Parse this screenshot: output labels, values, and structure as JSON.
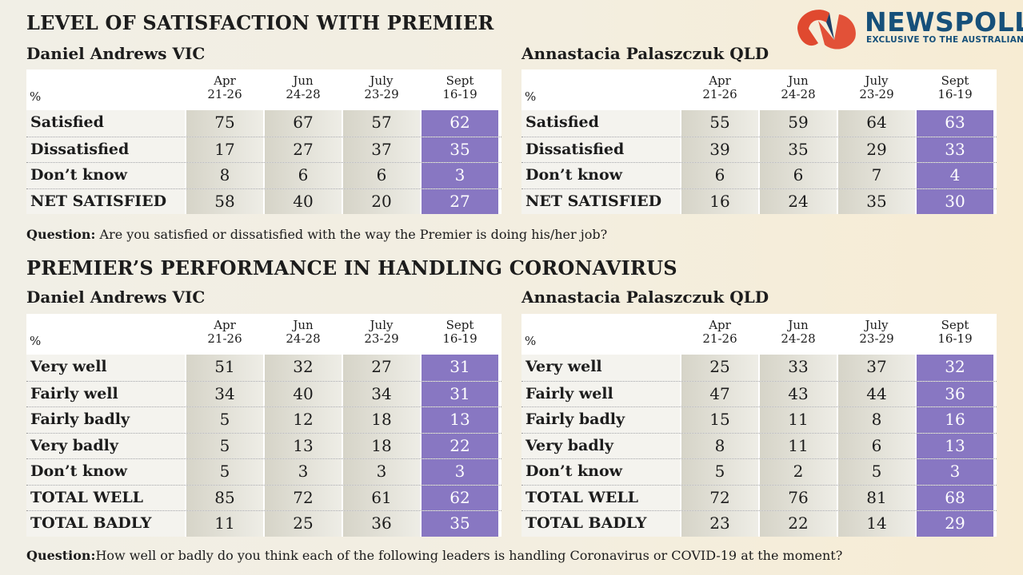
{
  "header": {
    "title1": "LEVEL OF SATISFACTION WITH PREMIER",
    "title2": "PREMIER’S PERFORMANCE IN HANDLING CORONAVIRUS",
    "logo": "NEWSPOLL",
    "logo_sub": "EXCLUSIVE TO THE AUSTRALIAN",
    "colors": {
      "sept_column": "#8877c2",
      "logo_red": "#e0492f",
      "logo_blue": "#16507a"
    }
  },
  "questions": {
    "q1_bold": "Question:",
    "q1": " Are you satisfied or dissatisfied with the way the Premier is doing his/her job?",
    "q2_bold": "Question:",
    "q2": "How well or badly do you think each of the following leaders is handling Coronavirus or COVID-19 at the moment?"
  },
  "chart_data": [
    {
      "type": "table",
      "title": "Daniel Andrews VIC",
      "section": "LEVEL OF SATISFACTION WITH PREMIER",
      "unit": "%",
      "columns": [
        [
          "Apr",
          "21-26"
        ],
        [
          "Jun",
          "24-28"
        ],
        [
          "July",
          "23-29"
        ],
        [
          "Sept",
          "16-19"
        ]
      ],
      "rows": [
        {
          "label": "Satisfied",
          "values": [
            75,
            67,
            57,
            62
          ]
        },
        {
          "label": "Dissatisfied",
          "values": [
            17,
            27,
            37,
            35
          ]
        },
        {
          "label": "Don’t know",
          "values": [
            8,
            6,
            6,
            3
          ]
        },
        {
          "label": "NET SATISFIED",
          "values": [
            58,
            40,
            20,
            27
          ]
        }
      ]
    },
    {
      "type": "table",
      "title": "Annastacia Palaszczuk QLD",
      "section": "LEVEL OF SATISFACTION WITH PREMIER",
      "unit": "%",
      "columns": [
        [
          "Apr",
          "21-26"
        ],
        [
          "Jun",
          "24-28"
        ],
        [
          "July",
          "23-29"
        ],
        [
          "Sept",
          "16-19"
        ]
      ],
      "rows": [
        {
          "label": "Satisfied",
          "values": [
            55,
            59,
            64,
            63
          ]
        },
        {
          "label": "Dissatisfied",
          "values": [
            39,
            35,
            29,
            33
          ]
        },
        {
          "label": "Don’t know",
          "values": [
            6,
            6,
            7,
            4
          ]
        },
        {
          "label": "NET SATISFIED",
          "values": [
            16,
            24,
            35,
            30
          ]
        }
      ]
    },
    {
      "type": "table",
      "title": "Daniel Andrews VIC",
      "section": "PREMIER’S PERFORMANCE IN HANDLING CORONAVIRUS",
      "unit": "%",
      "columns": [
        [
          "Apr",
          "21-26"
        ],
        [
          "Jun",
          "24-28"
        ],
        [
          "July",
          "23-29"
        ],
        [
          "Sept",
          "16-19"
        ]
      ],
      "rows": [
        {
          "label": "Very well",
          "values": [
            51,
            32,
            27,
            31
          ]
        },
        {
          "label": "Fairly well",
          "values": [
            34,
            40,
            34,
            31
          ]
        },
        {
          "label": "Fairly badly",
          "values": [
            5,
            12,
            18,
            13
          ]
        },
        {
          "label": "Very badly",
          "values": [
            5,
            13,
            18,
            22
          ]
        },
        {
          "label": "Don’t know",
          "values": [
            5,
            3,
            3,
            3
          ]
        },
        {
          "label": "TOTAL WELL",
          "values": [
            85,
            72,
            61,
            62
          ]
        },
        {
          "label": "TOTAL BADLY",
          "values": [
            11,
            25,
            36,
            35
          ]
        }
      ]
    },
    {
      "type": "table",
      "title": "Annastacia Palaszczuk QLD",
      "section": "PREMIER’S PERFORMANCE IN HANDLING CORONAVIRUS",
      "unit": "%",
      "columns": [
        [
          "Apr",
          "21-26"
        ],
        [
          "Jun",
          "24-28"
        ],
        [
          "July",
          "23-29"
        ],
        [
          "Sept",
          "16-19"
        ]
      ],
      "rows": [
        {
          "label": "Very well",
          "values": [
            25,
            33,
            37,
            32
          ]
        },
        {
          "label": "Fairly well",
          "values": [
            47,
            43,
            44,
            36
          ]
        },
        {
          "label": "Fairly badly",
          "values": [
            15,
            11,
            8,
            16
          ]
        },
        {
          "label": "Very badly",
          "values": [
            8,
            11,
            6,
            13
          ]
        },
        {
          "label": "Don’t know",
          "values": [
            5,
            2,
            5,
            3
          ]
        },
        {
          "label": "TOTAL WELL",
          "values": [
            72,
            76,
            81,
            68
          ]
        },
        {
          "label": "TOTAL BADLY",
          "values": [
            23,
            22,
            14,
            29
          ]
        }
      ]
    }
  ]
}
